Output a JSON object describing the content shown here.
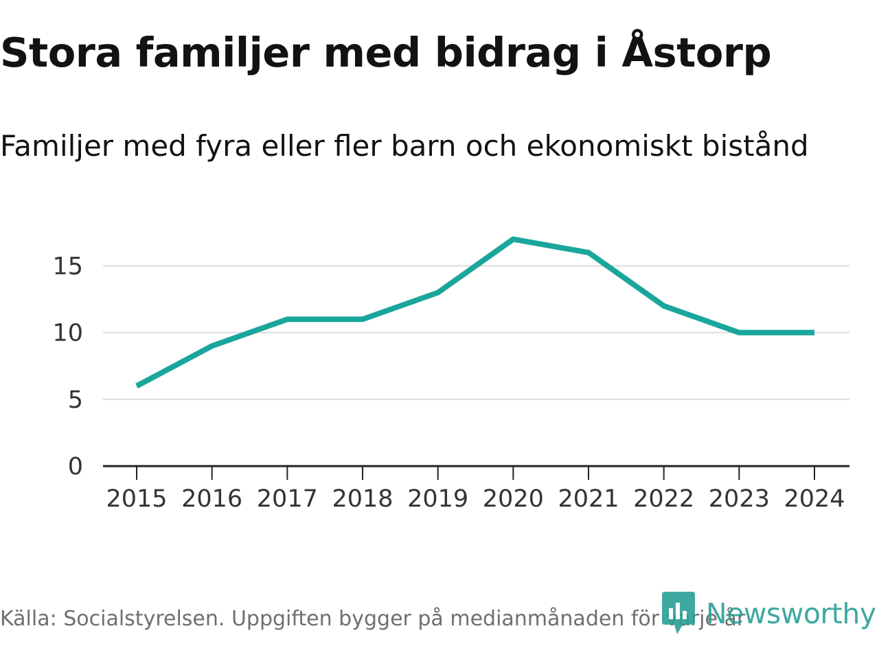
{
  "chart_data": {
    "type": "line",
    "title": "Stora familjer med bidrag i Åstorp",
    "subtitle": "Familjer med fyra eller fler barn och ekonomiskt bistånd",
    "xlabel": "",
    "ylabel": "",
    "categories": [
      "2015",
      "2016",
      "2017",
      "2018",
      "2019",
      "2020",
      "2021",
      "2022",
      "2023",
      "2024"
    ],
    "series": [
      {
        "name": "Familjer med fyra eller fler barn och ekonomiskt bistånd",
        "values": [
          6,
          9,
          11,
          11,
          13,
          17,
          16,
          12,
          10,
          10
        ]
      }
    ],
    "ylim": [
      0,
      18
    ],
    "yticks": [
      0,
      5,
      10,
      15
    ],
    "ytick_labels": [
      "0",
      "5",
      "10",
      "15"
    ],
    "grid": true,
    "line_color": "#1aa69c"
  },
  "source": "Källa: Socialstyrelsen. Uppgiften bygger på medianmånaden för varje år",
  "brand": {
    "name": "Newsworthy",
    "icon": "newsworthy-logo-icon",
    "color": "#2aa097"
  }
}
